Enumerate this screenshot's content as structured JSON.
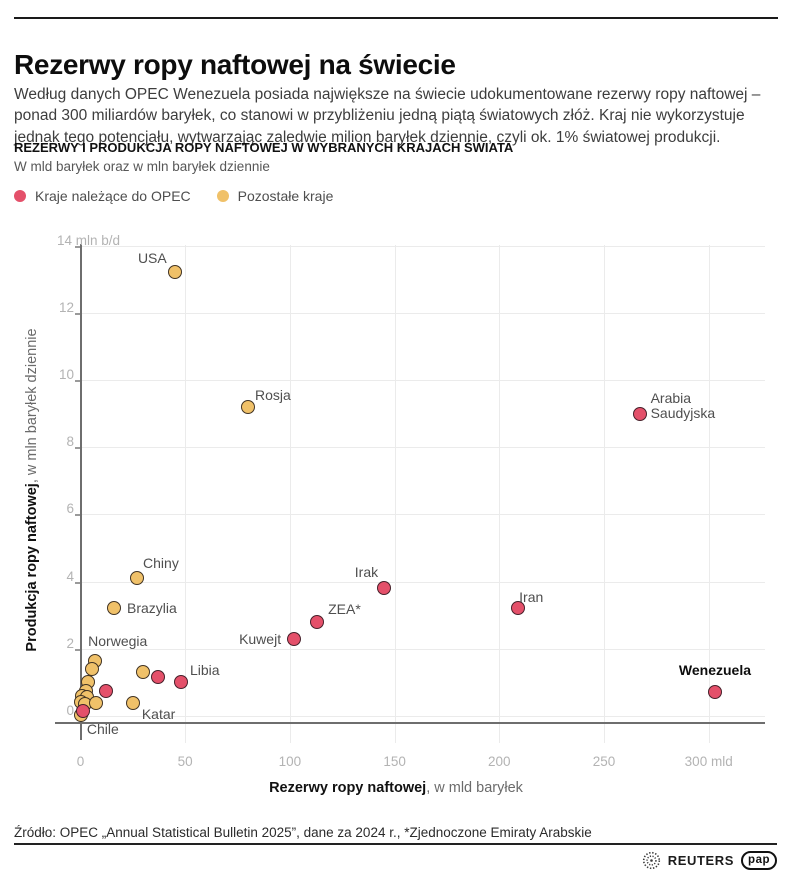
{
  "header": {
    "title": "Rezerwy ropy naftowej na świecie",
    "paragraph": "Według danych OPEC Wenezuela posiada największe na świecie udokumentowane rezerwy ropy naftowej –\nponad 300 miliardów baryłek, co stanowi w przybliżeniu jedną piątą światowych złóż. Kraj nie wykorzystuje\njednak tego potencjału, wytwarzając zaledwie milion baryłek dziennie, czyli ok. 1% światowej produkcji."
  },
  "chart": {
    "heading": "REZERWY I PRODUKCJA ROPY NAFTOWEJ W WYBRANYCH KRAJACH ŚWIATA",
    "unit_note": "W mld baryłek oraz w mln baryłek dziennie",
    "legend": [
      {
        "label": "Kraje należące do OPEC",
        "color": "#e4506a"
      },
      {
        "label": "Pozostałe kraje",
        "color": "#f0c169"
      }
    ]
  },
  "chart_data": {
    "type": "scatter",
    "title": "REZERWY I PRODUKCJA ROPY NAFTOWEJ W WYBRANYCH KRAJACH ŚWIATA",
    "subtitle": "W mld baryłek oraz w mln baryłek dziennie",
    "xlabel_bold": "Rezerwy ropy naftowej",
    "xlabel_rest": ", w mld baryłek",
    "ylabel_bold": "Produkcja ropy naftowej",
    "ylabel_rest": ", w mln baryłek dziennie",
    "xlim": [
      0,
      327
    ],
    "ylim": [
      -0.4,
      14.3
    ],
    "grid": true,
    "legend_position": "top-left",
    "x_ticks": [
      {
        "v": 0,
        "label": "0"
      },
      {
        "v": 50,
        "label": "50"
      },
      {
        "v": 100,
        "label": "100"
      },
      {
        "v": 150,
        "label": "150"
      },
      {
        "v": 200,
        "label": "200"
      },
      {
        "v": 250,
        "label": "250"
      },
      {
        "v": 300,
        "label": "300 mld"
      }
    ],
    "y_ticks": [
      {
        "v": 0,
        "label": "0"
      },
      {
        "v": 2,
        "label": "2"
      },
      {
        "v": 4,
        "label": "4"
      },
      {
        "v": 6,
        "label": "6"
      },
      {
        "v": 8,
        "label": "8"
      },
      {
        "v": 10,
        "label": "10"
      },
      {
        "v": 12,
        "label": "12"
      },
      {
        "v": 14,
        "label": "14 mln b/d",
        "units": true
      }
    ],
    "series": [
      {
        "name": "Pozostałe kraje",
        "color": "#f0c169",
        "stroke": "#413323",
        "points": [
          {
            "label": "USA",
            "x": 45,
            "y": 13.2,
            "anchor": "right",
            "label_dx": -8,
            "label_dy": -21
          },
          {
            "label": "Rosja",
            "x": 80,
            "y": 9.2,
            "anchor": "left",
            "label_dx": 7,
            "label_dy": -19
          },
          {
            "label": "Chiny",
            "x": 27,
            "y": 4.1,
            "anchor": "left",
            "label_dx": 6,
            "label_dy": -22
          },
          {
            "label": "Brazylia",
            "x": 16,
            "y": 3.2,
            "anchor": "left",
            "label_dx": 13,
            "label_dy": -7
          },
          {
            "label": "Norwegia",
            "x": 7,
            "y": 1.65,
            "anchor": "left",
            "label_dx": -7,
            "label_dy": -27
          },
          {
            "label": "Katar",
            "x": 25,
            "y": 0.4,
            "anchor": "left",
            "label_dx": 9,
            "label_dy": 4
          },
          {
            "label": "Chile",
            "x": 0.2,
            "y": 0.02,
            "anchor": "left",
            "label_dx": 6,
            "label_dy": 7
          },
          {
            "x": 30,
            "y": 1.3
          },
          {
            "x": 5.3,
            "y": 1.4
          },
          {
            "x": 3.6,
            "y": 1.0
          },
          {
            "x": 2.8,
            "y": 0.75
          },
          {
            "x": 0.9,
            "y": 0.6
          },
          {
            "x": 3.2,
            "y": 0.56
          },
          {
            "x": 0.3,
            "y": 0.42
          },
          {
            "x": 2.0,
            "y": 0.36
          },
          {
            "x": 7.3,
            "y": 0.4
          }
        ]
      },
      {
        "name": "Kraje należące do OPEC",
        "color": "#e4506a",
        "stroke": "#46202a",
        "points": [
          {
            "label": "Arabia\nSaudyjska",
            "x": 267,
            "y": 9.0,
            "anchor": "left",
            "label_dx": 11,
            "label_dy": -23
          },
          {
            "label": "Irak",
            "x": 145,
            "y": 3.8,
            "anchor": "right",
            "label_dx": -6,
            "label_dy": -23
          },
          {
            "label": "Iran",
            "x": 209,
            "y": 3.2,
            "anchor": "left",
            "label_dx": 1,
            "label_dy": -18
          },
          {
            "label": "ZEA*",
            "x": 113,
            "y": 2.8,
            "anchor": "left",
            "label_dx": 11,
            "label_dy": -20
          },
          {
            "label": "Kuwejt",
            "x": 102,
            "y": 2.3,
            "anchor": "right",
            "label_dx": -13,
            "label_dy": -7
          },
          {
            "label": "Libia",
            "x": 48,
            "y": 1.0,
            "anchor": "left",
            "label_dx": 9,
            "label_dy": -19
          },
          {
            "label": "Wenezuela",
            "x": 303,
            "y": 0.7,
            "bold": true,
            "anchor": "center",
            "label_dx": 0,
            "label_dy": -29
          },
          {
            "x": 37,
            "y": 1.15
          },
          {
            "x": 12,
            "y": 0.75
          },
          {
            "x": 1.2,
            "y": 0.15
          }
        ]
      }
    ]
  },
  "footer": {
    "source": "Źródło: OPEC „Annual Statistical Bulletin 2025”, dane za 2024 r., *Zjednoczone Emiraty Arabskie",
    "logos": {
      "reuters": "REUTERS",
      "pap": "pap"
    }
  }
}
